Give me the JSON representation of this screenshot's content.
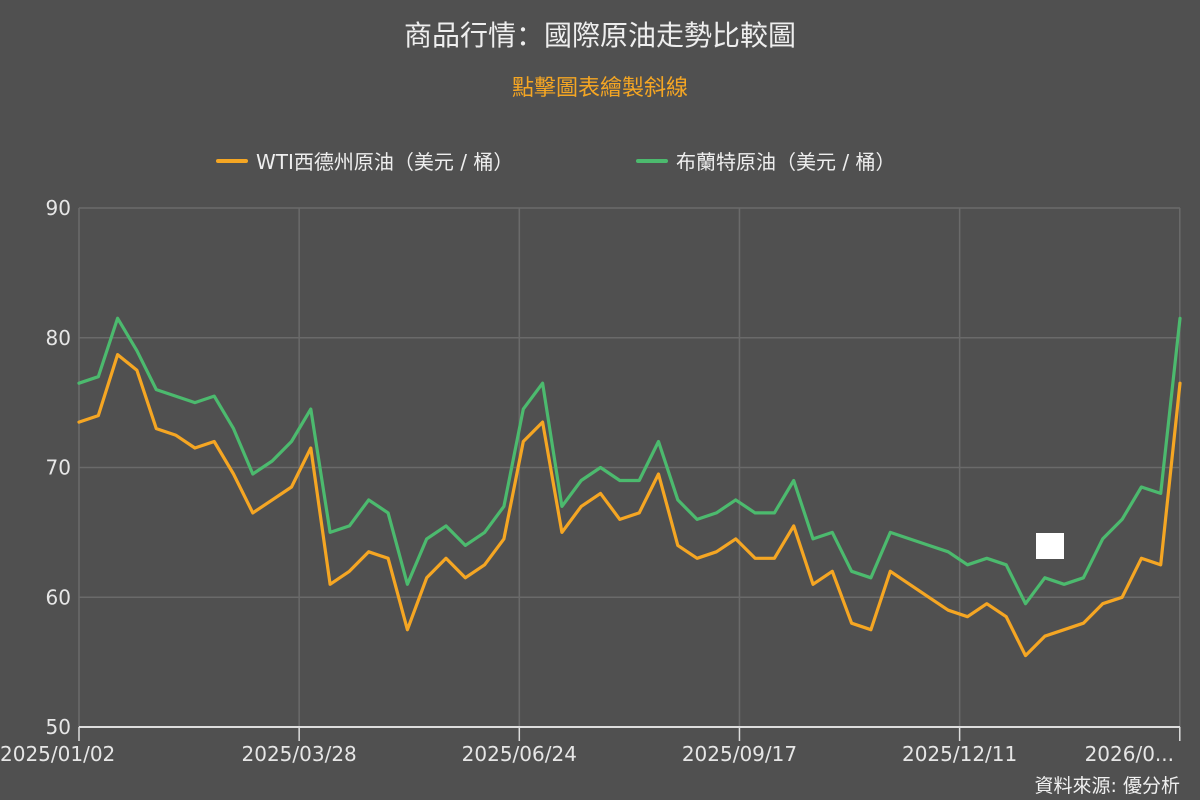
{
  "header": {
    "title": "商品行情：國際原油走勢比較圖",
    "subtitle": "點擊圖表繪製斜線"
  },
  "footer": {
    "source": "資料來源: 優分析"
  },
  "colors": {
    "wti": "#f5a623",
    "brent": "#4cba6e",
    "background": "#505050",
    "grid": "#6a6a6a"
  },
  "chart_data": {
    "type": "line",
    "title": "商品行情：國際原油走勢比較圖",
    "xlabel": "",
    "ylabel": "",
    "ylim": [
      50,
      90
    ],
    "yticks": [
      "50",
      "60",
      "70",
      "80",
      "90"
    ],
    "xticks": [
      "2025/01/02",
      "2025/03/28",
      "2025/06/24",
      "2025/09/17",
      "2025/12/11",
      "2026/0..."
    ],
    "x": [
      "2025/01/02",
      "2025/01/09",
      "2025/01/16",
      "2025/01/23",
      "2025/01/30",
      "2025/02/06",
      "2025/02/13",
      "2025/02/20",
      "2025/02/27",
      "2025/03/06",
      "2025/03/13",
      "2025/03/20",
      "2025/03/27",
      "2025/04/03",
      "2025/04/10",
      "2025/04/17",
      "2025/04/24",
      "2025/05/01",
      "2025/05/08",
      "2025/05/15",
      "2025/05/22",
      "2025/05/29",
      "2025/06/05",
      "2025/06/12",
      "2025/06/19",
      "2025/06/26",
      "2025/07/03",
      "2025/07/10",
      "2025/07/17",
      "2025/07/24",
      "2025/07/31",
      "2025/08/07",
      "2025/08/14",
      "2025/08/21",
      "2025/08/28",
      "2025/09/04",
      "2025/09/11",
      "2025/09/18",
      "2025/09/25",
      "2025/10/02",
      "2025/10/09",
      "2025/10/16",
      "2025/10/23",
      "2025/10/30",
      "2025/11/06",
      "2025/11/13",
      "2025/11/20",
      "2025/11/27",
      "2025/12/04",
      "2025/12/11",
      "2025/12/18",
      "2025/12/25",
      "2026/01/01",
      "2026/01/08",
      "2026/01/15",
      "2026/01/22",
      "2026/01/29",
      "2026/02/05"
    ],
    "series": [
      {
        "name": "WTI西德州原油（美元 / 桶）",
        "color": "#f5a623",
        "values": [
          73.5,
          74.0,
          78.7,
          77.5,
          73.0,
          72.5,
          71.5,
          72.0,
          69.5,
          66.5,
          67.5,
          68.5,
          71.5,
          61.0,
          62.0,
          63.5,
          63.0,
          57.5,
          61.5,
          63.0,
          61.5,
          62.5,
          64.5,
          72.0,
          73.5,
          65.0,
          67.0,
          68.0,
          66.0,
          66.5,
          69.5,
          64.0,
          63.0,
          63.5,
          64.5,
          63.0,
          63.0,
          65.5,
          61.0,
          62.0,
          58.0,
          57.5,
          62.0,
          61.0,
          60.0,
          59.0,
          58.5,
          59.5,
          58.5,
          55.5,
          57.0,
          57.5,
          58.0,
          59.5,
          60.0,
          63.0,
          62.5,
          76.5
        ]
      },
      {
        "name": "布蘭特原油（美元 / 桶）",
        "color": "#4cba6e",
        "values": [
          76.5,
          77.0,
          81.5,
          79.0,
          76.0,
          75.5,
          75.0,
          75.5,
          73.0,
          69.5,
          70.5,
          72.0,
          74.5,
          65.0,
          65.5,
          67.5,
          66.5,
          61.0,
          64.5,
          65.5,
          64.0,
          65.0,
          67.0,
          74.5,
          76.5,
          67.0,
          69.0,
          70.0,
          69.0,
          69.0,
          72.0,
          67.5,
          66.0,
          66.5,
          67.5,
          66.5,
          66.5,
          69.0,
          64.5,
          65.0,
          62.0,
          61.5,
          65.0,
          64.5,
          64.0,
          63.5,
          62.5,
          63.0,
          62.5,
          59.5,
          61.5,
          61.0,
          61.5,
          64.5,
          66.0,
          68.5,
          68.0,
          81.5
        ]
      }
    ]
  }
}
